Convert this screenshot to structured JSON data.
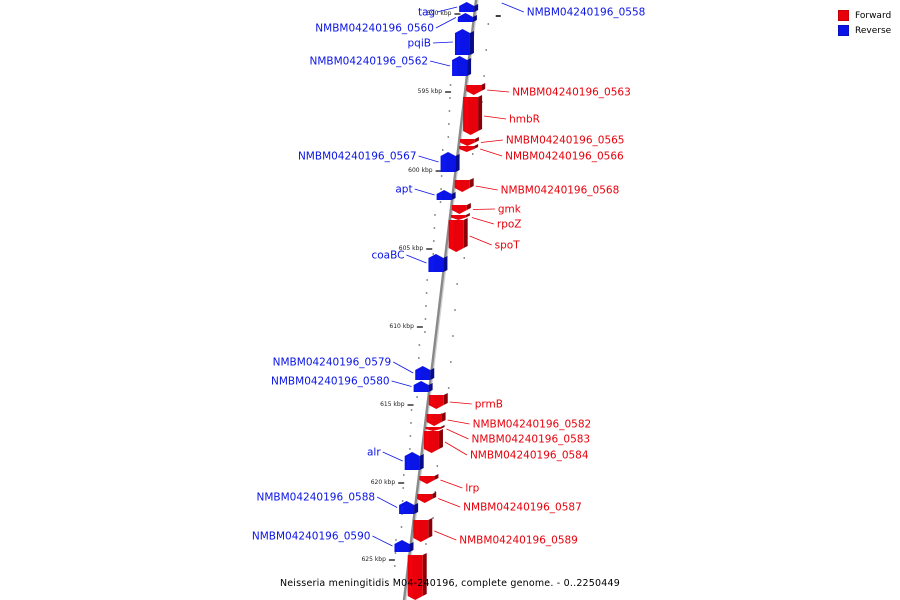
{
  "colors": {
    "forward": "#e8000b",
    "reverse": "#0a14e6",
    "backbone": "#999999"
  },
  "legend": [
    {
      "label": "Forward",
      "color": "#e8000b"
    },
    {
      "label": "Reverse",
      "color": "#0a14e6"
    }
  ],
  "caption": "Neisseria meningitidis M04-240196, complete genome. - 0..2250449",
  "kbp_marks": [
    {
      "pos": 590,
      "label": "590 kbp"
    },
    {
      "pos": 595,
      "label": "595 kbp"
    },
    {
      "pos": 600,
      "label": "600 kbp"
    },
    {
      "pos": 605,
      "label": "605 kbp"
    },
    {
      "pos": 610,
      "label": "610 kbp"
    },
    {
      "pos": 615,
      "label": "615 kbp"
    },
    {
      "pos": 620,
      "label": "620 kbp"
    },
    {
      "pos": 625,
      "label": "625 kbp"
    }
  ],
  "genes": [
    {
      "name": "tag",
      "strand": "reverse"
    },
    {
      "name": "NMBM04240196_0558",
      "strand": "reverse"
    },
    {
      "name": "NMBM04240196_0560",
      "strand": "reverse"
    },
    {
      "name": "pqiB",
      "strand": "reverse"
    },
    {
      "name": "NMBM04240196_0562",
      "strand": "reverse"
    },
    {
      "name": "NMBM04240196_0563",
      "strand": "forward"
    },
    {
      "name": "hmbR",
      "strand": "forward"
    },
    {
      "name": "NMBM04240196_0565",
      "strand": "forward"
    },
    {
      "name": "NMBM04240196_0566",
      "strand": "forward"
    },
    {
      "name": "NMBM04240196_0567",
      "strand": "reverse"
    },
    {
      "name": "NMBM04240196_0568",
      "strand": "forward"
    },
    {
      "name": "apt",
      "strand": "reverse"
    },
    {
      "name": "gmk",
      "strand": "forward"
    },
    {
      "name": "rpoZ",
      "strand": "forward"
    },
    {
      "name": "spoT",
      "strand": "forward"
    },
    {
      "name": "coaBC",
      "strand": "reverse"
    },
    {
      "name": "NMBM04240196_0579",
      "strand": "reverse"
    },
    {
      "name": "NMBM04240196_0580",
      "strand": "reverse"
    },
    {
      "name": "prmB",
      "strand": "forward"
    },
    {
      "name": "NMBM04240196_0582",
      "strand": "forward"
    },
    {
      "name": "NMBM04240196_0583",
      "strand": "forward"
    },
    {
      "name": "NMBM04240196_0584",
      "strand": "forward"
    },
    {
      "name": "alr",
      "strand": "reverse"
    },
    {
      "name": "lrp",
      "strand": "forward"
    },
    {
      "name": "NMBM04240196_0587",
      "strand": "forward"
    },
    {
      "name": "NMBM04240196_0588",
      "strand": "reverse"
    },
    {
      "name": "NMBM04240196_0589",
      "strand": "forward"
    },
    {
      "name": "NMBM04240196_0590",
      "strand": "reverse"
    }
  ]
}
